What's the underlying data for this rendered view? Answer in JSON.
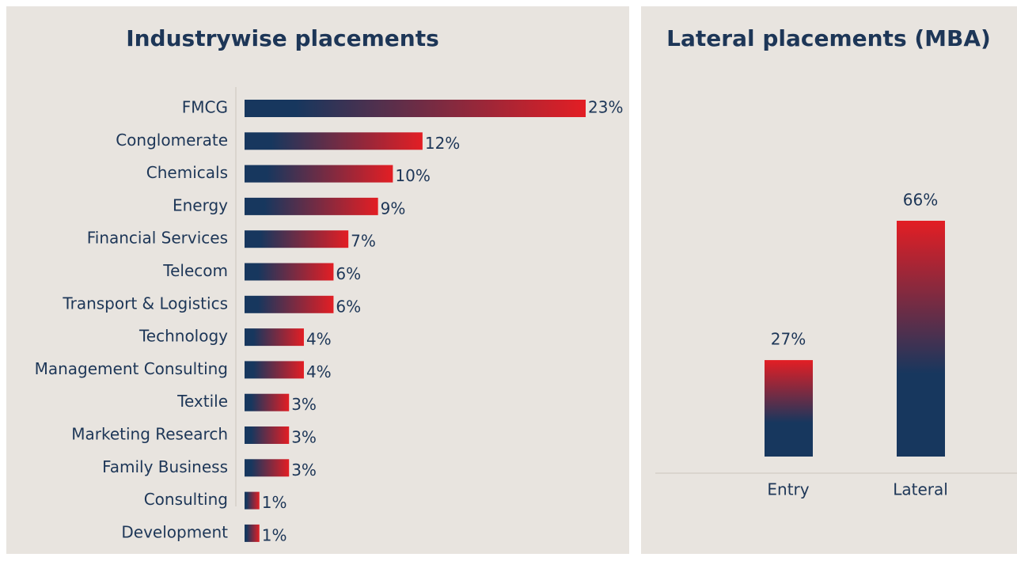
{
  "chart_data": [
    {
      "type": "hbar",
      "title": "Industrywise placements",
      "categories": [
        "FMCG",
        "Conglomerate",
        "Chemicals",
        "Energy",
        "Financial Services",
        "Telecom",
        "Transport & Logistics",
        "Technology",
        "Management Consulting",
        "Textile",
        "Marketing Research",
        "Family Business",
        "Consulting",
        "Development"
      ],
      "values": [
        23,
        12,
        10,
        9,
        7,
        6,
        6,
        4,
        4,
        3,
        3,
        3,
        1,
        1
      ],
      "value_labels": [
        "23%",
        "12%",
        "10%",
        "9%",
        "7%",
        "6%",
        "6%",
        "4%",
        "4%",
        "3%",
        "3%",
        "3%",
        "1%",
        "1%"
      ],
      "gradient": [
        "#17375e",
        "#e31e24"
      ]
    },
    {
      "type": "bar",
      "title": "Lateral placements (MBA)",
      "categories": [
        "Entry",
        "Lateral"
      ],
      "values": [
        27,
        66
      ],
      "value_labels": [
        "27%",
        "66%"
      ],
      "gradient": [
        "#17375e",
        "#e31e24"
      ]
    }
  ]
}
